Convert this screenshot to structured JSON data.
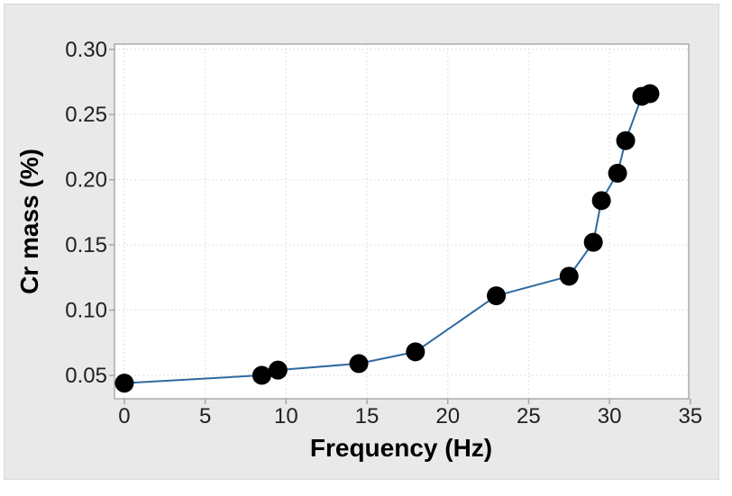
{
  "chart_data": {
    "type": "line",
    "subtype": "scatter-line (connected points)",
    "title": "",
    "xlabel": "Frequency (Hz)",
    "ylabel": "Cr mass (%)",
    "x": [
      0,
      8.5,
      9.5,
      14.5,
      18,
      23,
      27.5,
      29,
      29.5,
      30.5,
      31,
      32,
      32.5
    ],
    "y": [
      0.044,
      0.05,
      0.054,
      0.059,
      0.068,
      0.111,
      0.126,
      0.152,
      0.184,
      0.205,
      0.23,
      0.264,
      0.266
    ],
    "x_ticks": [
      0,
      5,
      10,
      15,
      20,
      25,
      30,
      35
    ],
    "x_tick_labels": [
      "0",
      "5",
      "10",
      "15",
      "20",
      "25",
      "30",
      "35"
    ],
    "y_ticks": [
      0.05,
      0.1,
      0.15,
      0.2,
      0.25,
      0.3
    ],
    "y_tick_labels": [
      "0.05",
      "0.10",
      "0.15",
      "0.20",
      "0.25",
      "0.30"
    ],
    "xlim": [
      -0.61,
      34.9
    ],
    "ylim": [
      0.032,
      0.304
    ],
    "grid": "both axes, dotted light gray",
    "legend": "none",
    "marker": "filled-circle-black",
    "colors": {
      "line": "#2d69a0",
      "marker": "#000000",
      "plot_bg": "#ffffff",
      "panel_bg": "#e9e9e9",
      "panel_border": "#d9d9d9",
      "gridline": "#dfdfdf",
      "axis_border": "#9a9a9a",
      "tick": "#a6a6a6",
      "tick_label": "#212121",
      "axis_title": "#000000"
    }
  }
}
